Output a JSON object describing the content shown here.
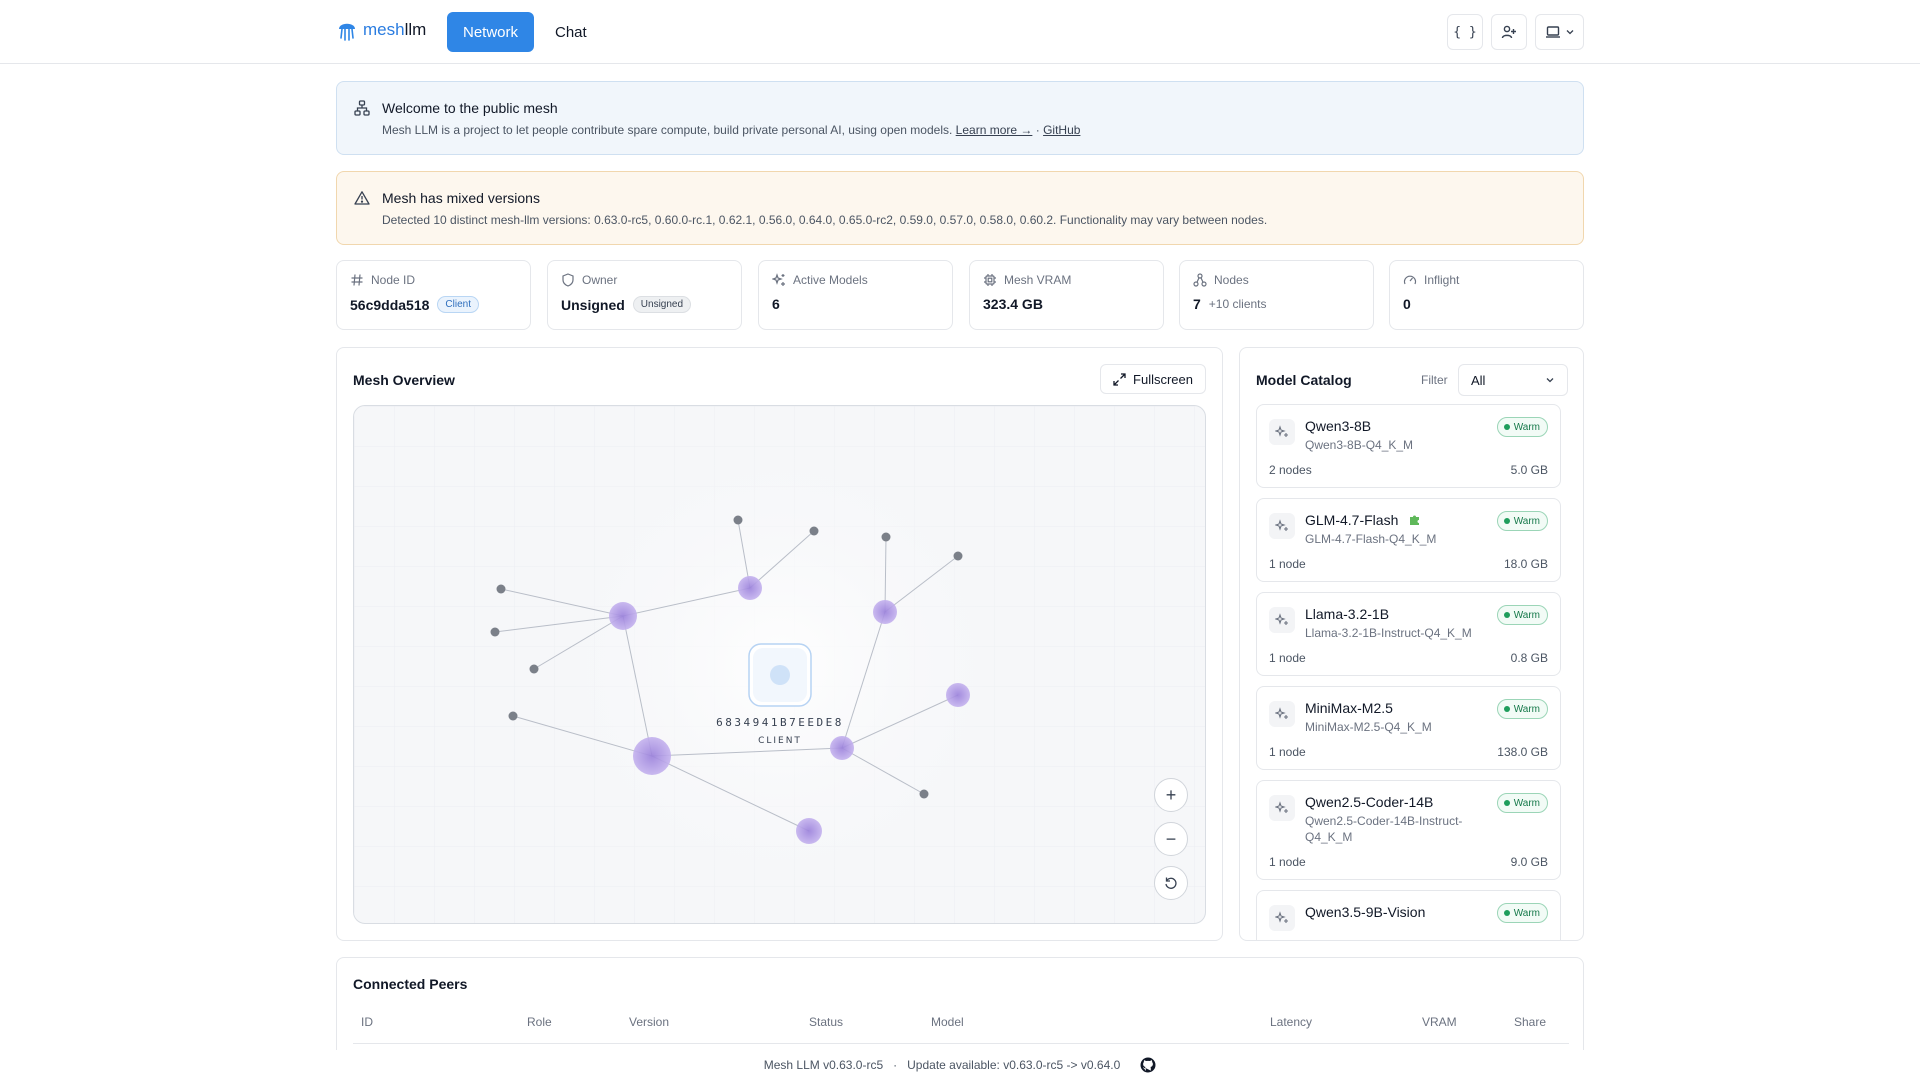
{
  "brand": {
    "part1": "mesh",
    "part2": "llm"
  },
  "nav": {
    "network": "Network",
    "chat": "Chat"
  },
  "top_actions": {
    "api": "{ }"
  },
  "info_banner": {
    "title": "Welcome to the public mesh",
    "text": "Mesh LLM is a project to let people contribute spare compute, build private personal AI, using open models.",
    "learn_more": "Learn more →",
    "separator": "·",
    "github": "GitHub"
  },
  "warn_banner": {
    "title": "Mesh has mixed versions",
    "text": "Detected 10 distinct mesh-llm versions: 0.63.0-rc5, 0.60.0-rc.1, 0.62.1, 0.56.0, 0.64.0, 0.65.0-rc2, 0.59.0, 0.57.0, 0.58.0, 0.60.2. Functionality may vary between nodes."
  },
  "stats": {
    "node_id": {
      "label": "Node ID",
      "value": "56c9dda518",
      "badge": "Client"
    },
    "owner": {
      "label": "Owner",
      "value": "Unsigned",
      "badge": "Unsigned"
    },
    "active_models": {
      "label": "Active Models",
      "value": "6"
    },
    "mesh_vram": {
      "label": "Mesh VRAM",
      "value": "323.4 GB"
    },
    "nodes": {
      "label": "Nodes",
      "value": "7",
      "sub": "+10 clients"
    },
    "inflight": {
      "label": "Inflight",
      "value": "0"
    }
  },
  "overview": {
    "title": "Mesh Overview",
    "fullscreen": "Fullscreen",
    "center_node_id": "6834941B7EEDE8",
    "center_node_role": "CLIENT",
    "zoom_in": "+",
    "zoom_out": "−"
  },
  "catalog": {
    "title": "Model Catalog",
    "filter_label": "Filter",
    "filter_value": "All",
    "models": [
      {
        "name": "Qwen3-8B",
        "file": "Qwen3-8B-Q4_K_M",
        "status": "Warm",
        "nodes": "2 nodes",
        "size": "5.0 GB"
      },
      {
        "name": "GLM-4.7-Flash",
        "file": "GLM-4.7-Flash-Q4_K_M",
        "status": "Warm",
        "nodes": "1 node",
        "size": "18.0 GB"
      },
      {
        "name": "Llama-3.2-1B",
        "file": "Llama-3.2-1B-Instruct-Q4_K_M",
        "status": "Warm",
        "nodes": "1 node",
        "size": "0.8 GB"
      },
      {
        "name": "MiniMax-M2.5",
        "file": "MiniMax-M2.5-Q4_K_M",
        "status": "Warm",
        "nodes": "1 node",
        "size": "138.0 GB"
      },
      {
        "name": "Qwen2.5-Coder-14B",
        "file": "Qwen2.5-Coder-14B-Instruct-Q4_K_M",
        "status": "Warm",
        "nodes": "1 node",
        "size": "9.0 GB"
      },
      {
        "name": "Qwen3.5-9B-Vision",
        "file": "",
        "status": "Warm",
        "nodes": "",
        "size": ""
      }
    ]
  },
  "peers": {
    "title": "Connected Peers",
    "columns": [
      "ID",
      "Role",
      "Version",
      "Status",
      "Model",
      "Latency",
      "VRAM",
      "Share"
    ]
  },
  "footer": {
    "version": "Mesh LLM v0.63.0-rc5",
    "separator": "·",
    "update": "Update available: v0.63.0-rc5 -> v0.64.0"
  },
  "colors": {
    "accent": "#2f86e6",
    "node": "#a98ee0",
    "warm": "#1f9d5c"
  }
}
